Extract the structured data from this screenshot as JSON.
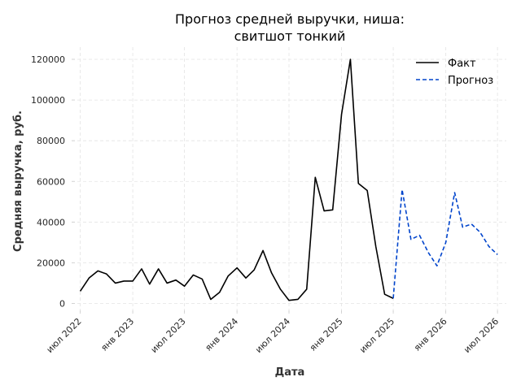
{
  "chart_data": {
    "type": "line",
    "title_lines": [
      "Прогноз средней выручки, ниша:",
      "свитшот тонкий"
    ],
    "xlabel": "Дата",
    "ylabel": "Средняя выручка, руб.",
    "x_ticks": [
      {
        "label": "июл 2022",
        "date": "2022-07-01"
      },
      {
        "label": "янв 2023",
        "date": "2023-01-01"
      },
      {
        "label": "июл 2023",
        "date": "2023-07-01"
      },
      {
        "label": "янв 2024",
        "date": "2024-01-01"
      },
      {
        "label": "июл 2024",
        "date": "2024-07-01"
      },
      {
        "label": "янв 2025",
        "date": "2025-01-01"
      },
      {
        "label": "июл 2025",
        "date": "2025-07-01"
      },
      {
        "label": "янв 2026",
        "date": "2026-01-01"
      },
      {
        "label": "июл 2026",
        "date": "2026-07-01"
      }
    ],
    "y_ticks": [
      0,
      20000,
      40000,
      60000,
      80000,
      100000,
      120000
    ],
    "y_tick_labels": [
      "0",
      "20000",
      "40000",
      "60000",
      "80000",
      "100000",
      "120000"
    ],
    "xlim": [
      "2022-06-01",
      "2026-08-01"
    ],
    "ylim": [
      -5000,
      126000
    ],
    "grid": true,
    "legend_position": "top-right",
    "series": [
      {
        "name": "Факт",
        "color": "#000000",
        "style": "solid",
        "points": [
          [
            "2022-07-01",
            6000
          ],
          [
            "2022-08-01",
            12500
          ],
          [
            "2022-09-01",
            16000
          ],
          [
            "2022-10-01",
            14500
          ],
          [
            "2022-11-01",
            10000
          ],
          [
            "2022-12-01",
            11000
          ],
          [
            "2023-01-01",
            11000
          ],
          [
            "2023-02-01",
            17000
          ],
          [
            "2023-03-01",
            9500
          ],
          [
            "2023-04-01",
            17000
          ],
          [
            "2023-05-01",
            10000
          ],
          [
            "2023-06-01",
            11500
          ],
          [
            "2023-07-01",
            8500
          ],
          [
            "2023-08-01",
            14000
          ],
          [
            "2023-09-01",
            12000
          ],
          [
            "2023-10-01",
            2000
          ],
          [
            "2023-11-01",
            5500
          ],
          [
            "2023-12-01",
            13500
          ],
          [
            "2024-01-01",
            17500
          ],
          [
            "2024-02-01",
            12500
          ],
          [
            "2024-03-01",
            16500
          ],
          [
            "2024-04-01",
            26000
          ],
          [
            "2024-05-01",
            15000
          ],
          [
            "2024-06-01",
            7000
          ],
          [
            "2024-07-01",
            1500
          ],
          [
            "2024-08-01",
            2000
          ],
          [
            "2024-09-01",
            7000
          ],
          [
            "2024-10-01",
            62000
          ],
          [
            "2024-11-01",
            45500
          ],
          [
            "2024-12-01",
            46000
          ],
          [
            "2025-01-01",
            93000
          ],
          [
            "2025-02-01",
            120000
          ],
          [
            "2025-03-01",
            59000
          ],
          [
            "2025-04-01",
            55500
          ],
          [
            "2025-05-01",
            28000
          ],
          [
            "2025-06-01",
            4500
          ],
          [
            "2025-07-01",
            2500
          ]
        ]
      },
      {
        "name": "Прогноз",
        "color": "#0044cc",
        "style": "dashed",
        "points": [
          [
            "2025-07-01",
            2500
          ],
          [
            "2025-08-01",
            56000
          ],
          [
            "2025-09-01",
            31500
          ],
          [
            "2025-10-01",
            33500
          ],
          [
            "2025-11-01",
            25000
          ],
          [
            "2025-12-01",
            18500
          ],
          [
            "2026-01-01",
            30000
          ],
          [
            "2026-02-01",
            54500
          ],
          [
            "2026-03-01",
            37500
          ],
          [
            "2026-04-01",
            39000
          ],
          [
            "2026-05-01",
            35000
          ],
          [
            "2026-06-01",
            28000
          ],
          [
            "2026-07-01",
            24000
          ]
        ]
      }
    ]
  }
}
